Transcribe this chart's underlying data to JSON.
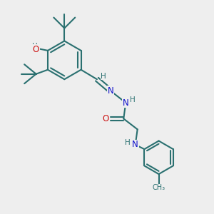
{
  "bg_color": "#eeeeee",
  "bond_color": "#2a7070",
  "bond_lw": 1.5,
  "atom_colors": {
    "C": "#2a7070",
    "H": "#2a7070",
    "O": "#cc1111",
    "N": "#1111cc"
  },
  "font_size": 8.5,
  "figsize": [
    3.0,
    3.0
  ],
  "dpi": 100
}
